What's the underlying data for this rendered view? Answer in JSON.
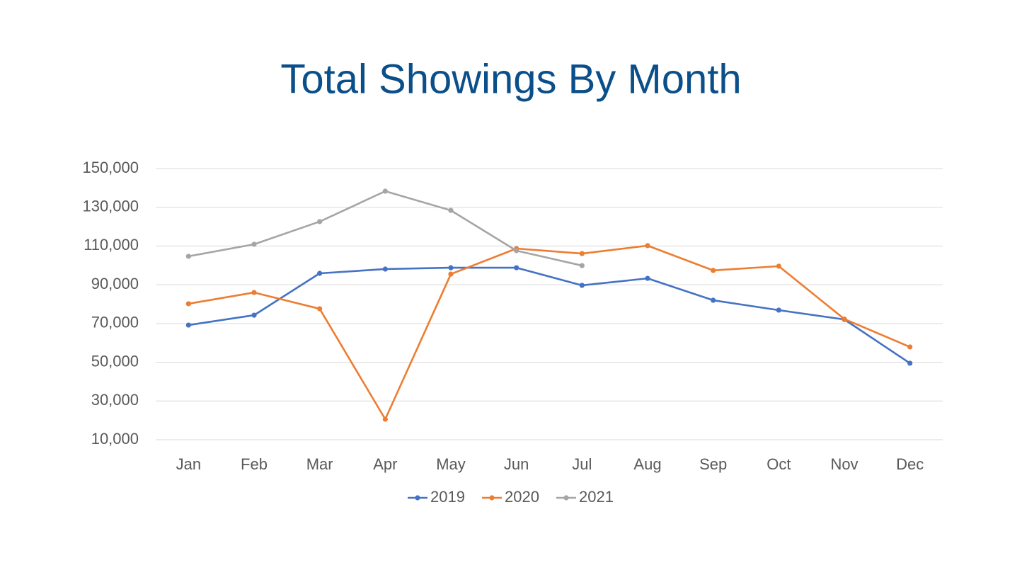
{
  "chart_data": {
    "type": "line",
    "title": "Total Showings By Month",
    "categories": [
      "Jan",
      "Feb",
      "Mar",
      "Apr",
      "May",
      "Jun",
      "Jul",
      "Aug",
      "Sep",
      "Oct",
      "Nov",
      "Dec"
    ],
    "series": [
      {
        "name": "2019",
        "color": "#4472c4",
        "values": [
          69200,
          74300,
          95900,
          98100,
          98800,
          98800,
          89700,
          93300,
          82000,
          76900,
          72100,
          49500
        ]
      },
      {
        "name": "2020",
        "color": "#ed7d31",
        "values": [
          80200,
          86000,
          77600,
          20600,
          95500,
          108700,
          106100,
          110200,
          97400,
          99600,
          72300,
          57900
        ]
      },
      {
        "name": "2021",
        "color": "#a5a5a5",
        "values": [
          104700,
          110900,
          122600,
          138300,
          128400,
          107600,
          99900,
          null,
          null,
          null,
          null,
          null
        ]
      }
    ],
    "ylim": [
      10000,
      150000
    ],
    "yticks": [
      {
        "value": 10000,
        "label": "10,000"
      },
      {
        "value": 30000,
        "label": "30,000"
      },
      {
        "value": 50000,
        "label": "50,000"
      },
      {
        "value": 70000,
        "label": "70,000"
      },
      {
        "value": 90000,
        "label": "90,000"
      },
      {
        "value": 110000,
        "label": "110,000"
      },
      {
        "value": 130000,
        "label": "130,000"
      },
      {
        "value": 150000,
        "label": "150,000"
      }
    ],
    "grid": true,
    "legend": "bottom"
  }
}
